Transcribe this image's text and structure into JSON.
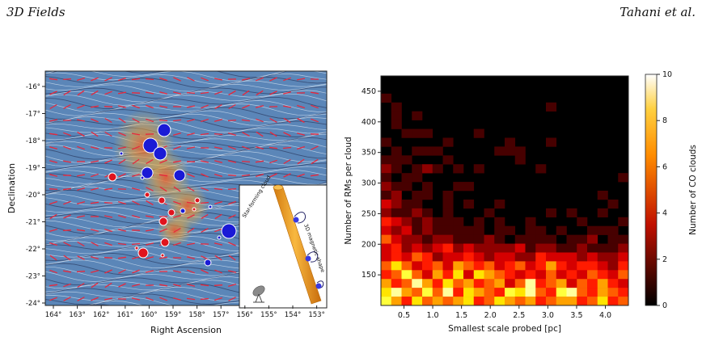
{
  "header": {
    "left": "3D Fields",
    "right": "Tahani et al."
  },
  "left_panel": {
    "xlabel": "Right Ascension",
    "ylabel": "Declination",
    "xticks": [
      "164°",
      "163°",
      "162°",
      "161°",
      "160°",
      "159°",
      "158°",
      "157°",
      "156°",
      "155°",
      "154°",
      "153°"
    ],
    "yticks": [
      "-16°",
      "-17°",
      "-18°",
      "-19°",
      "-20°",
      "-21°",
      "-22°",
      "-23°",
      "-24°"
    ],
    "inset": {
      "label_cloud": "Star-forming cloud",
      "label_field": "3D magnetic shape"
    },
    "colors": {
      "background": "#5b86b8",
      "positive_marker": "#1a1ad6",
      "negative_marker": "#e0141e",
      "vector": "#e8283c",
      "inset_tube": "#f4a01e"
    }
  },
  "chart_data": {
    "type": "heatmap",
    "xlabel": "Smallest scale probed [pc]",
    "ylabel": "Number of RMs per cloud",
    "xticks": [
      "0.5",
      "1.0",
      "1.5",
      "2.0",
      "2.5",
      "3.0",
      "3.5",
      "4.0"
    ],
    "yticks": [
      "150",
      "200",
      "250",
      "300",
      "350",
      "400",
      "450"
    ],
    "colorbar": {
      "label": "Number of CO clouds",
      "ticks": [
        "0",
        "2",
        "4",
        "6",
        "8",
        "10"
      ],
      "range": [
        0,
        10
      ]
    },
    "x_range": [
      0.1,
      4.4
    ],
    "y_range": [
      100,
      475
    ],
    "bin_counts": [
      [
        0,
        0,
        0,
        0,
        0,
        0,
        0,
        0,
        0,
        0,
        0,
        0,
        0,
        0,
        0,
        0,
        0,
        0,
        0,
        0,
        0,
        0,
        0,
        0
      ],
      [
        0,
        0,
        0,
        0,
        0,
        0,
        0,
        0,
        0,
        0,
        0,
        0,
        0,
        0,
        0,
        0,
        0,
        0,
        0,
        0,
        0,
        0,
        0,
        0
      ],
      [
        1,
        0,
        0,
        0,
        0,
        0,
        0,
        0,
        0,
        0,
        0,
        0,
        0,
        0,
        0,
        0,
        0,
        0,
        0,
        0,
        0,
        0,
        0,
        0
      ],
      [
        0,
        1,
        0,
        0,
        0,
        0,
        0,
        0,
        0,
        0,
        0,
        0,
        0,
        0,
        0,
        0,
        1,
        0,
        0,
        0,
        0,
        0,
        0,
        0
      ],
      [
        0,
        1,
        0,
        1,
        0,
        0,
        0,
        0,
        0,
        0,
        0,
        0,
        0,
        0,
        0,
        0,
        0,
        0,
        0,
        0,
        0,
        0,
        0,
        0
      ],
      [
        0,
        1,
        0,
        0,
        0,
        0,
        0,
        0,
        0,
        0,
        0,
        0,
        0,
        0,
        0,
        0,
        0,
        0,
        0,
        0,
        0,
        0,
        0,
        0
      ],
      [
        0,
        0,
        1,
        1,
        1,
        0,
        0,
        0,
        0,
        1,
        0,
        0,
        0,
        0,
        0,
        0,
        0,
        0,
        0,
        0,
        0,
        0,
        0,
        0
      ],
      [
        1,
        0,
        0,
        0,
        0,
        0,
        1,
        0,
        0,
        0,
        0,
        0,
        1,
        0,
        0,
        0,
        1,
        0,
        0,
        0,
        0,
        0,
        0,
        0
      ],
      [
        0,
        1,
        0,
        1,
        1,
        1,
        0,
        0,
        0,
        0,
        0,
        1,
        1,
        1,
        0,
        0,
        0,
        0,
        0,
        0,
        0,
        0,
        0,
        0
      ],
      [
        1,
        1,
        1,
        0,
        0,
        0,
        1,
        0,
        0,
        0,
        0,
        0,
        0,
        1,
        0,
        0,
        0,
        0,
        0,
        0,
        0,
        0,
        0,
        0
      ],
      [
        2,
        1,
        0,
        1,
        2,
        1,
        0,
        1,
        0,
        1,
        0,
        0,
        0,
        0,
        0,
        1,
        0,
        0,
        0,
        0,
        0,
        0,
        0,
        0
      ],
      [
        1,
        0,
        1,
        1,
        0,
        0,
        0,
        0,
        0,
        0,
        0,
        0,
        0,
        0,
        0,
        0,
        0,
        0,
        0,
        0,
        0,
        0,
        0,
        1
      ],
      [
        2,
        1,
        1,
        0,
        1,
        0,
        0,
        1,
        1,
        0,
        0,
        0,
        0,
        0,
        0,
        0,
        0,
        0,
        0,
        0,
        0,
        0,
        0,
        0
      ],
      [
        1,
        2,
        0,
        1,
        1,
        0,
        1,
        0,
        0,
        0,
        0,
        0,
        0,
        0,
        0,
        0,
        0,
        0,
        0,
        0,
        0,
        1,
        0,
        0
      ],
      [
        3,
        2,
        1,
        1,
        0,
        0,
        1,
        0,
        1,
        0,
        0,
        1,
        0,
        0,
        0,
        0,
        0,
        0,
        0,
        0,
        0,
        0,
        1,
        0
      ],
      [
        2,
        1,
        1,
        2,
        1,
        0,
        1,
        0,
        0,
        0,
        1,
        0,
        0,
        0,
        0,
        0,
        1,
        0,
        1,
        0,
        0,
        1,
        0,
        0
      ],
      [
        4,
        3,
        2,
        1,
        2,
        1,
        1,
        1,
        0,
        1,
        0,
        1,
        0,
        0,
        1,
        0,
        0,
        0,
        0,
        1,
        0,
        0,
        0,
        1
      ],
      [
        3,
        2,
        3,
        1,
        2,
        1,
        1,
        1,
        1,
        1,
        0,
        1,
        1,
        0,
        1,
        1,
        0,
        1,
        0,
        0,
        1,
        1,
        1,
        0
      ],
      [
        5,
        3,
        2,
        2,
        1,
        2,
        2,
        1,
        1,
        1,
        2,
        1,
        0,
        1,
        1,
        1,
        1,
        0,
        1,
        1,
        2,
        0,
        1,
        1
      ],
      [
        3,
        4,
        2,
        3,
        2,
        3,
        4,
        2,
        3,
        2,
        2,
        2,
        2,
        3,
        1,
        2,
        2,
        1,
        1,
        2,
        1,
        1,
        1,
        2
      ],
      [
        3,
        4,
        3,
        5,
        4,
        2,
        3,
        3,
        4,
        3,
        2,
        3,
        3,
        2,
        2,
        4,
        3,
        3,
        3,
        2,
        3,
        2,
        2,
        3
      ],
      [
        5,
        7,
        5,
        3,
        4,
        5,
        3,
        6,
        5,
        4,
        5,
        3,
        4,
        5,
        3,
        4,
        6,
        4,
        3,
        4,
        4,
        3,
        2,
        4
      ],
      [
        4,
        5,
        8,
        5,
        3,
        6,
        4,
        7,
        3,
        7,
        6,
        5,
        4,
        3,
        4,
        3,
        5,
        3,
        4,
        3,
        5,
        4,
        3,
        5
      ],
      [
        6,
        4,
        5,
        9,
        6,
        4,
        7,
        5,
        6,
        4,
        5,
        6,
        3,
        5,
        9,
        4,
        5,
        6,
        3,
        5,
        4,
        6,
        4,
        3
      ],
      [
        7,
        9,
        6,
        5,
        8,
        5,
        9,
        4,
        7,
        6,
        5,
        4,
        8,
        7,
        9,
        5,
        4,
        8,
        9,
        5,
        4,
        6,
        5,
        4
      ],
      [
        8,
        6,
        4,
        7,
        5,
        6,
        5,
        6,
        7,
        4,
        5,
        7,
        6,
        5,
        6,
        4,
        5,
        6,
        6,
        4,
        5,
        7,
        4,
        5
      ]
    ]
  }
}
